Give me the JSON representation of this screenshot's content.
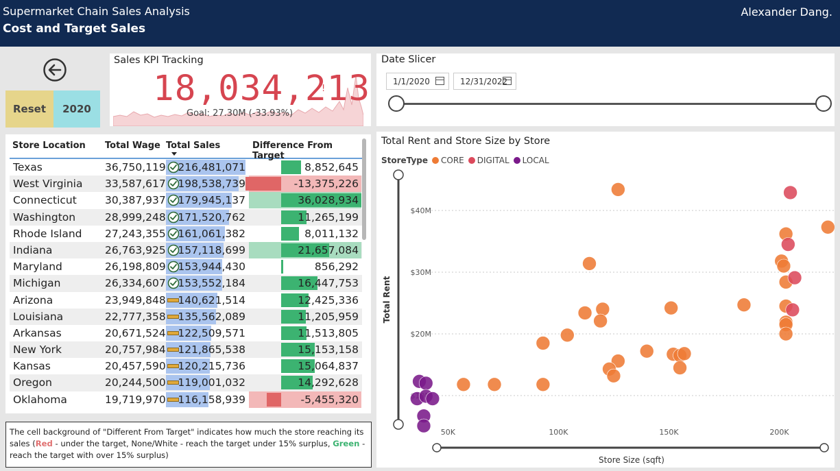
{
  "header": {
    "report_title": "Supermarket Chain Sales Analysis",
    "page_title": "Cost and Target Sales",
    "author": "Alexander Dang."
  },
  "controls": {
    "reset_label": "Reset",
    "year_label": "2020"
  },
  "kpi": {
    "title": "Sales KPI Tracking",
    "value": "18,034,213",
    "indicator": "!",
    "goal_text": "Goal: 27.30M (-33.93%)"
  },
  "table": {
    "headers": [
      "Store Location",
      "Total Wage",
      "Total Sales",
      "Difference From Target"
    ],
    "max_sales": 216481071,
    "rows": [
      {
        "location": "Texas",
        "wage": "36,750,119",
        "sales": "216,481,071",
        "sales_num": 216481071,
        "status": "met",
        "diff": "8,852,645",
        "diff_num": 8852645,
        "band": "none"
      },
      {
        "location": "West Virginia",
        "wage": "33,587,617",
        "sales": "198,538,739",
        "sales_num": 198538739,
        "status": "met",
        "diff": "-13,375,226",
        "diff_num": -13375226,
        "band": "red"
      },
      {
        "location": "Connecticut",
        "wage": "30,387,937",
        "sales": "179,945,137",
        "sales_num": 179945137,
        "status": "met",
        "diff": "36,028,934",
        "diff_num": 36028934,
        "band": "green"
      },
      {
        "location": "Washington",
        "wage": "28,999,248",
        "sales": "171,520,762",
        "sales_num": 171520762,
        "status": "met",
        "diff": "11,265,199",
        "diff_num": 11265199,
        "band": "none"
      },
      {
        "location": "Rhode Island",
        "wage": "27,243,355",
        "sales": "161,061,382",
        "sales_num": 161061382,
        "status": "met",
        "diff": "8,011,132",
        "diff_num": 8011132,
        "band": "none"
      },
      {
        "location": "Indiana",
        "wage": "26,763,925",
        "sales": "157,118,699",
        "sales_num": 157118699,
        "status": "met",
        "diff": "21,657,084",
        "diff_num": 21657084,
        "band": "green"
      },
      {
        "location": "Maryland",
        "wage": "26,198,809",
        "sales": "153,944,430",
        "sales_num": 153944430,
        "status": "met",
        "diff": "856,292",
        "diff_num": 856292,
        "band": "none"
      },
      {
        "location": "Michigan",
        "wage": "26,334,607",
        "sales": "153,552,184",
        "sales_num": 153552184,
        "status": "met",
        "diff": "16,447,753",
        "diff_num": 16447753,
        "band": "none"
      },
      {
        "location": "Arizona",
        "wage": "23,949,848",
        "sales": "140,621,514",
        "sales_num": 140621514,
        "status": "near",
        "diff": "12,425,336",
        "diff_num": 12425336,
        "band": "none"
      },
      {
        "location": "Louisiana",
        "wage": "22,777,358",
        "sales": "135,562,089",
        "sales_num": 135562089,
        "status": "near",
        "diff": "11,205,959",
        "diff_num": 11205959,
        "band": "none"
      },
      {
        "location": "Arkansas",
        "wage": "20,671,524",
        "sales": "122,509,571",
        "sales_num": 122509571,
        "status": "near",
        "diff": "11,513,805",
        "diff_num": 11513805,
        "band": "none"
      },
      {
        "location": "New York",
        "wage": "20,757,984",
        "sales": "121,865,538",
        "sales_num": 121865538,
        "status": "near",
        "diff": "15,153,158",
        "diff_num": 15153158,
        "band": "none"
      },
      {
        "location": "Kansas",
        "wage": "20,457,590",
        "sales": "120,215,736",
        "sales_num": 120215736,
        "status": "near",
        "diff": "15,064,837",
        "diff_num": 15064837,
        "band": "none"
      },
      {
        "location": "Oregon",
        "wage": "20,244,500",
        "sales": "119,001,032",
        "sales_num": 119001032,
        "status": "near",
        "diff": "14,292,628",
        "diff_num": 14292628,
        "band": "none"
      },
      {
        "location": "Oklahoma",
        "wage": "19,719,970",
        "sales": "116,158,939",
        "sales_num": 116158939,
        "status": "near",
        "diff": "-5,455,320",
        "diff_num": -5455320,
        "band": "red"
      }
    ]
  },
  "note": {
    "part1": "The cell background of \"Different From Target\" indicates how much the store reaching its sales (",
    "red": "Red",
    "part2": " - under the target, None/White - reach the target under 15% surplus, ",
    "green": "Green",
    "part3": " - reach the target with over 15% surplus)"
  },
  "slicer": {
    "title": "Date Slicer",
    "start": "1/1/2020",
    "end": "12/31/2022"
  },
  "colors": {
    "core": "#ee7b35",
    "digital": "#dc4a5c",
    "local": "#7a1a8a",
    "bar_sales": "#aac4ee",
    "green": "#3cb371",
    "red": "#e06666"
  },
  "chart_data": {
    "type": "scatter",
    "title": "Total Rent and Store Size by Store",
    "legend_title": "StoreType",
    "xlabel": "Store Size (sqft)",
    "ylabel": "Total Rent",
    "xlim": [
      30000,
      225000
    ],
    "ylim": [
      5000000,
      45000000
    ],
    "xticks": [
      "50K",
      "100K",
      "150K",
      "200K"
    ],
    "yticks": [
      "$10M",
      "$20M",
      "$30M",
      "$40M"
    ],
    "series": [
      {
        "name": "CORE",
        "points": [
          [
            127000,
            43400000
          ],
          [
            203000,
            36200000
          ],
          [
            222000,
            37300000
          ],
          [
            114000,
            31400000
          ],
          [
            201000,
            31800000
          ],
          [
            202000,
            31000000
          ],
          [
            203000,
            28400000
          ],
          [
            184000,
            24700000
          ],
          [
            151000,
            24200000
          ],
          [
            120000,
            24000000
          ],
          [
            112000,
            23400000
          ],
          [
            203000,
            24500000
          ],
          [
            119000,
            22100000
          ],
          [
            203000,
            21900000
          ],
          [
            203000,
            21500000
          ],
          [
            104000,
            19800000
          ],
          [
            203000,
            20000000
          ],
          [
            93000,
            18500000
          ],
          [
            140000,
            17200000
          ],
          [
            152000,
            16700000
          ],
          [
            155000,
            16500000
          ],
          [
            157000,
            16800000
          ],
          [
            127000,
            15600000
          ],
          [
            123000,
            14300000
          ],
          [
            155000,
            14500000
          ],
          [
            125000,
            13200000
          ],
          [
            57000,
            11800000
          ],
          [
            71000,
            11800000
          ],
          [
            93000,
            11800000
          ]
        ]
      },
      {
        "name": "DIGITAL",
        "points": [
          [
            205000,
            42900000
          ],
          [
            204000,
            34500000
          ],
          [
            207000,
            29100000
          ],
          [
            206000,
            23900000
          ]
        ]
      },
      {
        "name": "LOCAL",
        "points": [
          [
            37000,
            12300000
          ],
          [
            40000,
            12000000
          ],
          [
            36000,
            9500000
          ],
          [
            40000,
            9900000
          ],
          [
            43000,
            9500000
          ],
          [
            39000,
            6700000
          ],
          [
            39000,
            5100000
          ]
        ]
      }
    ]
  }
}
